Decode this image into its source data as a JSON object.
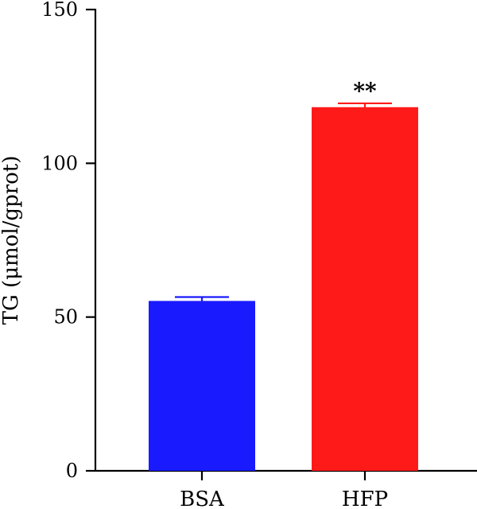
{
  "chart_data": {
    "type": "bar",
    "categories": [
      "BSA",
      "HFP"
    ],
    "values": [
      55,
      118
    ],
    "errors": [
      1.5,
      1.5
    ],
    "colors": [
      "#1a1aff",
      "#ff1a1a"
    ],
    "ylabel": "TG (μmol/gprot)",
    "xlabel": "",
    "ylim": [
      0,
      150
    ],
    "yticks": [
      0,
      50,
      100,
      150
    ],
    "annotations": [
      {
        "category": "HFP",
        "text": "**"
      }
    ],
    "grid": false
  }
}
